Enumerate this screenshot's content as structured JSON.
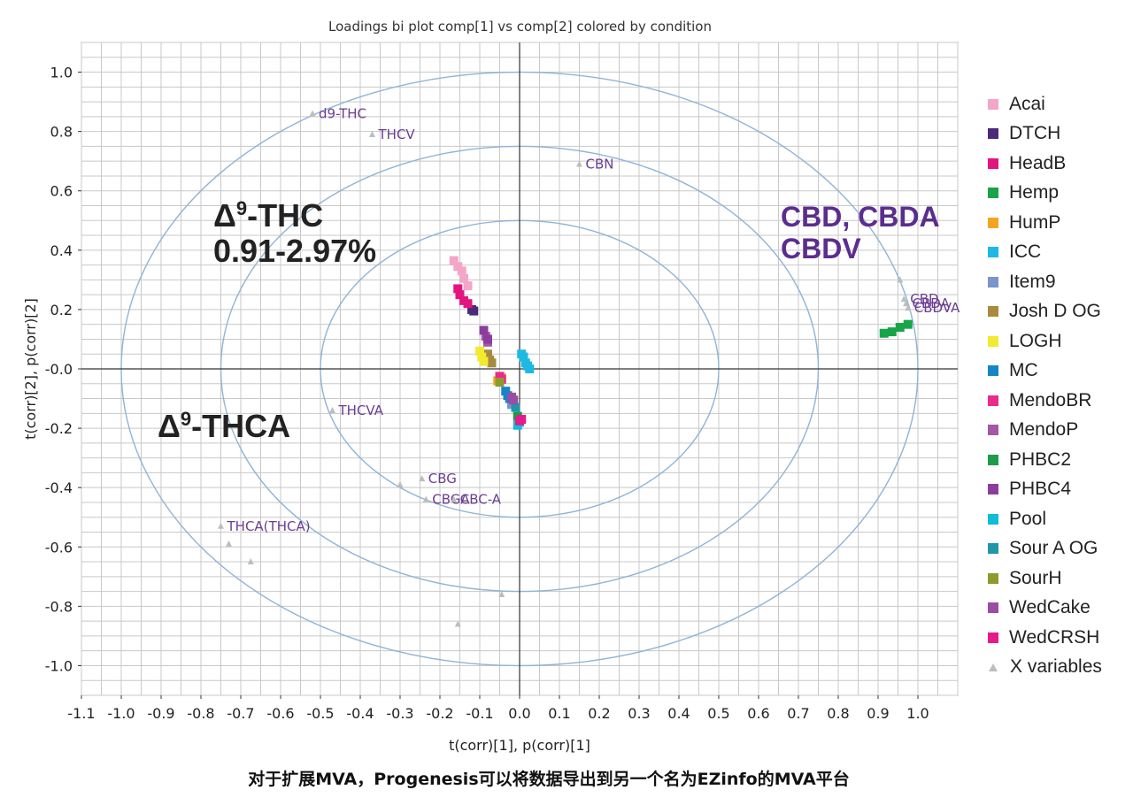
{
  "title": "Loadings bi plot comp[1] vs comp[2] colored by condition",
  "caption": "对于扩展MVA，Progenesis可以将数据导出到另一个名为EZinfo的MVA平台",
  "annotations": {
    "thc": {
      "delta": "Δ",
      "sup": "9",
      "name": "-THC",
      "range": "0.91-2.97%"
    },
    "thca": {
      "delta": "Δ",
      "sup": "9",
      "name": "-THCA"
    },
    "cbd": {
      "line1": "CBD, CBDA",
      "line2": "CBDV"
    }
  },
  "legend": [
    {
      "label": "Acai",
      "color": "#f4a6c8",
      "marker": "square"
    },
    {
      "label": "DTCH",
      "color": "#4b2a7a",
      "marker": "square"
    },
    {
      "label": "HeadB",
      "color": "#e4147f",
      "marker": "square"
    },
    {
      "label": "Hemp",
      "color": "#17a548",
      "marker": "square"
    },
    {
      "label": "HumP",
      "color": "#f2a61f",
      "marker": "square"
    },
    {
      "label": "ICC",
      "color": "#1db9e3",
      "marker": "square"
    },
    {
      "label": "Item9",
      "color": "#7b94cc",
      "marker": "square"
    },
    {
      "label": "Josh D OG",
      "color": "#a88b3c",
      "marker": "square"
    },
    {
      "label": "LOGH",
      "color": "#f2ea30",
      "marker": "square"
    },
    {
      "label": "MC",
      "color": "#1386c9",
      "marker": "square"
    },
    {
      "label": "MendoBR",
      "color": "#ea2b8a",
      "marker": "square"
    },
    {
      "label": "MendoP",
      "color": "#a257a8",
      "marker": "square"
    },
    {
      "label": "PHBC2",
      "color": "#1e9a4a",
      "marker": "square"
    },
    {
      "label": "PHBC4",
      "color": "#8b3d9e",
      "marker": "square"
    },
    {
      "label": "Pool",
      "color": "#12bcd8",
      "marker": "square"
    },
    {
      "label": "Sour A OG",
      "color": "#2097a8",
      "marker": "square"
    },
    {
      "label": "SourH",
      "color": "#8e9b2c",
      "marker": "square"
    },
    {
      "label": "WedCake",
      "color": "#9b4ca4",
      "marker": "square"
    },
    {
      "label": "WedCRSH",
      "color": "#e7198b",
      "marker": "square"
    },
    {
      "label": "X variables",
      "color": "#bdbdbd",
      "marker": "triangle"
    }
  ],
  "chart_data": {
    "type": "scatter",
    "title": "Loadings bi plot comp[1] vs comp[2] colored by condition",
    "xlabel": "t(corr)[1], p(corr)[1]",
    "ylabel": "t(corr)[2], p(corr)[2]",
    "xlim": [
      -1.1,
      1.1
    ],
    "ylim": [
      -1.1,
      1.1
    ],
    "xticks": [
      "-1.1",
      "-1.0",
      "-0.9",
      "-0.8",
      "-0.7",
      "-0.6",
      "-0.5",
      "-0.4",
      "-0.3",
      "-0.2",
      "-0.1",
      "0.0",
      "0.1",
      "0.2",
      "0.3",
      "0.4",
      "0.5",
      "0.6",
      "0.7",
      "0.8",
      "0.9",
      "1.0"
    ],
    "yticks": [
      "1.0",
      "0.8",
      "0.6",
      "0.4",
      "0.2",
      "-0.0",
      "-0.2",
      "-0.4",
      "-0.6",
      "-0.8",
      "-1.0"
    ],
    "grid": true,
    "legend_position": "right",
    "circles": [
      0.5,
      0.75,
      1.0
    ],
    "series": [
      {
        "name": "Acai",
        "color": "#f4a6c8",
        "points": [
          [
            -0.165,
            0.365
          ],
          [
            -0.155,
            0.345
          ],
          [
            -0.145,
            0.33
          ],
          [
            -0.14,
            0.305
          ],
          [
            -0.13,
            0.28
          ]
        ]
      },
      {
        "name": "DTCH",
        "color": "#4b2a7a",
        "points": [
          [
            -0.115,
            0.195
          ],
          [
            -0.12,
            0.2
          ]
        ]
      },
      {
        "name": "HeadB",
        "color": "#e4147f",
        "points": [
          [
            -0.155,
            0.27
          ],
          [
            -0.15,
            0.25
          ],
          [
            -0.14,
            0.23
          ],
          [
            -0.13,
            0.22
          ]
        ]
      },
      {
        "name": "Hemp",
        "color": "#17a548",
        "points": [
          [
            0.915,
            0.12
          ],
          [
            0.935,
            0.125
          ],
          [
            0.955,
            0.14
          ],
          [
            0.975,
            0.15
          ]
        ]
      },
      {
        "name": "HumP",
        "color": "#f2a61f",
        "points": [
          [
            -0.055,
            -0.04
          ],
          [
            -0.045,
            -0.03
          ]
        ]
      },
      {
        "name": "ICC",
        "color": "#1db9e3",
        "points": [
          [
            0.005,
            0.05
          ],
          [
            0.01,
            0.04
          ],
          [
            0.015,
            0.02
          ],
          [
            0.02,
            0.01
          ],
          [
            0.025,
            0.0
          ]
        ]
      },
      {
        "name": "Item9",
        "color": "#7b94cc",
        "points": [
          [
            -0.02,
            -0.12
          ]
        ]
      },
      {
        "name": "Josh D OG",
        "color": "#a88b3c",
        "points": [
          [
            -0.08,
            0.05
          ],
          [
            -0.075,
            0.03
          ],
          [
            -0.07,
            0.02
          ]
        ]
      },
      {
        "name": "LOGH",
        "color": "#f2ea30",
        "points": [
          [
            -0.1,
            0.06
          ],
          [
            -0.095,
            0.04
          ],
          [
            -0.09,
            0.025
          ]
        ]
      },
      {
        "name": "MC",
        "color": "#1386c9",
        "points": [
          [
            -0.035,
            -0.075
          ],
          [
            -0.03,
            -0.09
          ],
          [
            -0.025,
            -0.1
          ]
        ]
      },
      {
        "name": "MendoBR",
        "color": "#ea2b8a",
        "points": [
          [
            -0.05,
            -0.025
          ],
          [
            -0.045,
            -0.035
          ]
        ]
      },
      {
        "name": "MendoP",
        "color": "#a257a8",
        "points": [
          [
            -0.085,
            0.11
          ],
          [
            -0.08,
            0.09
          ]
        ]
      },
      {
        "name": "PHBC2",
        "color": "#1e9a4a",
        "points": [
          [
            -0.005,
            -0.16
          ]
        ]
      },
      {
        "name": "PHBC4",
        "color": "#8b3d9e",
        "points": [
          [
            -0.09,
            0.13
          ],
          [
            -0.08,
            0.1
          ]
        ]
      },
      {
        "name": "Pool",
        "color": "#12bcd8",
        "points": [
          [
            -0.005,
            -0.19
          ],
          [
            0.0,
            -0.18
          ]
        ]
      },
      {
        "name": "Sour A OG",
        "color": "#2097a8",
        "points": [
          [
            -0.01,
            -0.13
          ]
        ]
      },
      {
        "name": "SourH",
        "color": "#8e9b2c",
        "points": [
          [
            -0.05,
            -0.045
          ]
        ]
      },
      {
        "name": "WedCake",
        "color": "#9b4ca4",
        "points": [
          [
            -0.02,
            -0.095
          ],
          [
            -0.015,
            -0.105
          ]
        ]
      },
      {
        "name": "WedCRSH",
        "color": "#e7198b",
        "points": [
          [
            0.005,
            -0.17
          ],
          [
            0.0,
            -0.175
          ]
        ]
      }
    ],
    "x_variables": {
      "name": "X variables",
      "color": "#bdbdbd",
      "points": [
        {
          "x": -0.52,
          "y": 0.86,
          "label": "d9-THC"
        },
        {
          "x": -0.37,
          "y": 0.79,
          "label": "THCV"
        },
        {
          "x": 0.15,
          "y": 0.69,
          "label": "CBN"
        },
        {
          "x": 0.955,
          "y": 0.3,
          "label": ""
        },
        {
          "x": 0.965,
          "y": 0.235,
          "label": "CBD"
        },
        {
          "x": 0.975,
          "y": 0.205,
          "label": "CBDVA"
        },
        {
          "x": 0.97,
          "y": 0.22,
          "label": "CBDA"
        },
        {
          "x": -0.47,
          "y": -0.14,
          "label": "THCVA"
        },
        {
          "x": -0.245,
          "y": -0.37,
          "label": "CBG"
        },
        {
          "x": -0.3,
          "y": -0.39,
          "label": ""
        },
        {
          "x": -0.235,
          "y": -0.44,
          "label": "CBGA"
        },
        {
          "x": -0.165,
          "y": -0.44,
          "label": "CBC-A"
        },
        {
          "x": -0.75,
          "y": -0.53,
          "label": "THCA(THCA)"
        },
        {
          "x": -0.73,
          "y": -0.59,
          "label": ""
        },
        {
          "x": -0.675,
          "y": -0.65,
          "label": ""
        },
        {
          "x": -0.045,
          "y": -0.76,
          "label": ""
        },
        {
          "x": -0.155,
          "y": -0.86,
          "label": ""
        }
      ]
    }
  }
}
